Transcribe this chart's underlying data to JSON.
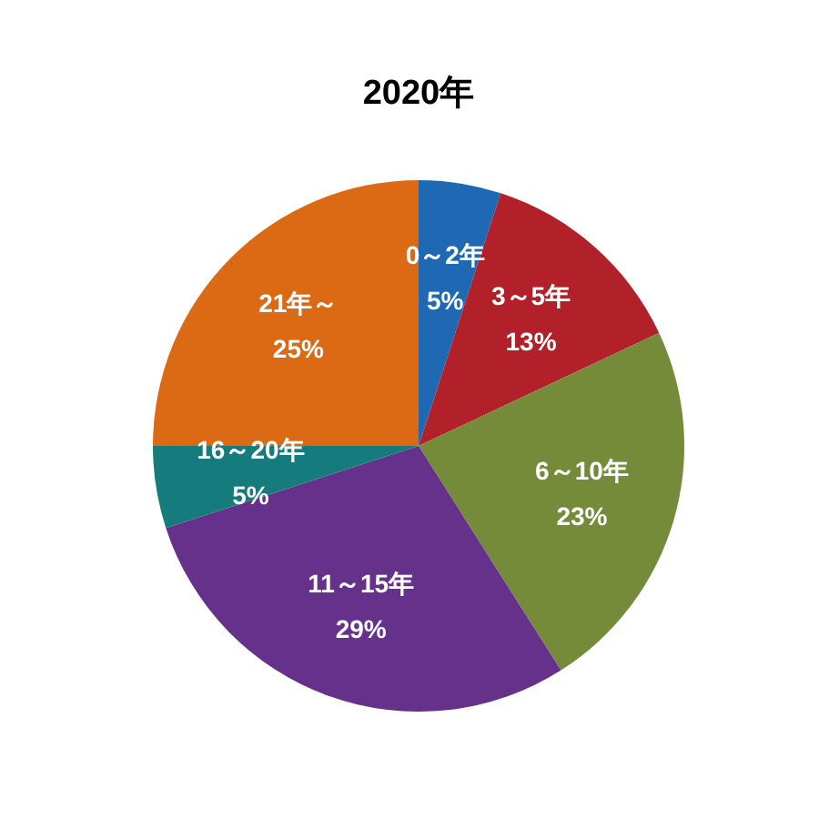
{
  "chart_data": {
    "type": "pie",
    "title": "2020年",
    "categories": [
      "0～2年",
      "3～5年",
      "6～10年",
      "11～15年",
      "16～20年",
      "21年～"
    ],
    "values": [
      5,
      13,
      23,
      29,
      5,
      25
    ],
    "value_labels": [
      "5%",
      "13%",
      "23%",
      "29%",
      "5%",
      "25%"
    ],
    "colors": [
      "#1e68b4",
      "#b2202a",
      "#768b3a",
      "#65318a",
      "#167b7c",
      "#dc6a15"
    ]
  }
}
